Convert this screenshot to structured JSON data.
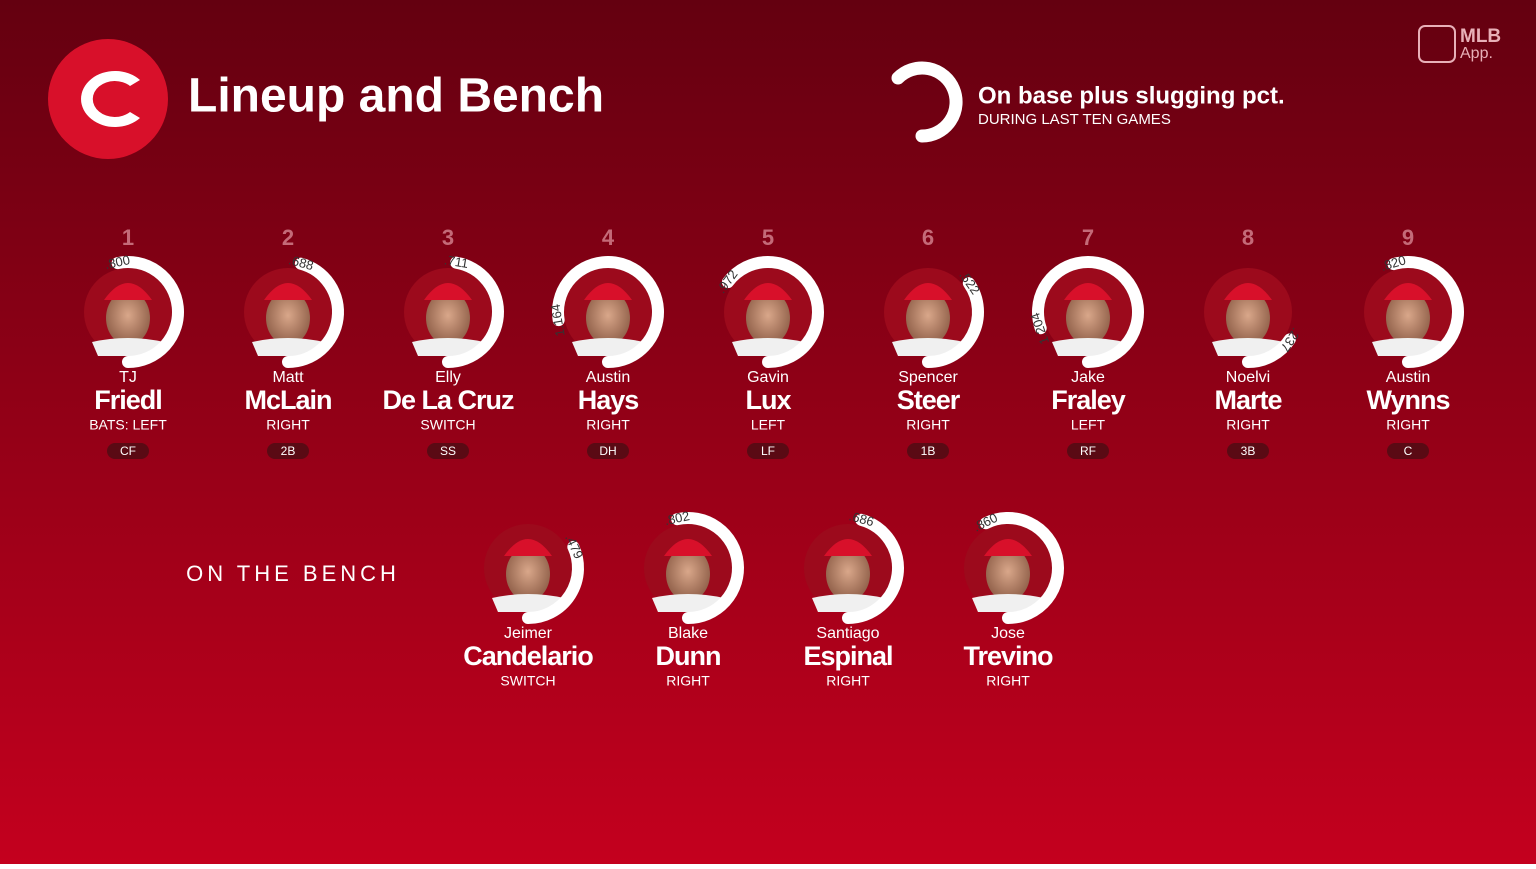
{
  "header": {
    "title": "Lineup and Bench",
    "brand": "MLB",
    "brand_sub": "App."
  },
  "legend": {
    "title": "On base plus slugging pct.",
    "subtitle": "DURING LAST TEN GAMES"
  },
  "lineup": [
    {
      "order": 1,
      "first": "TJ",
      "last": "Friedl",
      "bats": "BATS: LEFT",
      "position": "CF",
      "ops": {
        "value": 0.8,
        "label": ".800"
      }
    },
    {
      "order": 2,
      "first": "Matt",
      "last": "McLain",
      "bats": "RIGHT",
      "position": "2B",
      "ops": {
        "value": 0.688,
        "label": ".688"
      }
    },
    {
      "order": 3,
      "first": "Elly",
      "last": "De La Cruz",
      "bats": "SWITCH",
      "position": "SS",
      "ops": {
        "value": 0.711,
        "label": ".711"
      }
    },
    {
      "order": 4,
      "first": "Austin",
      "last": "Hays",
      "bats": "RIGHT",
      "position": "DH",
      "ops": {
        "value": 1.164,
        "label": "1.164"
      }
    },
    {
      "order": 5,
      "first": "Gavin",
      "last": "Lux",
      "bats": "LEFT",
      "position": "LF",
      "ops": {
        "value": 0.972,
        "label": ".972"
      }
    },
    {
      "order": 6,
      "first": "Spencer",
      "last": "Steer",
      "bats": "RIGHT",
      "position": "1B",
      "ops": {
        "value": 0.522,
        "label": ".522"
      }
    },
    {
      "order": 7,
      "first": "Jake",
      "last": "Fraley",
      "bats": "LEFT",
      "position": "RF",
      "ops": {
        "value": 1.204,
        "label": "1.204"
      }
    },
    {
      "order": 8,
      "first": "Noelvi",
      "last": "Marte",
      "bats": "RIGHT",
      "position": "3B",
      "ops": {
        "value": 0.237,
        "label": ".237"
      }
    },
    {
      "order": 9,
      "first": "Austin",
      "last": "Wynns",
      "bats": "RIGHT",
      "position": "C",
      "ops": {
        "value": 0.82,
        "label": ".820"
      }
    }
  ],
  "bench": {
    "title": "ON THE BENCH",
    "players": [
      {
        "first": "Jeimer",
        "last": "Candelario",
        "bats": "SWITCH",
        "ops": {
          "value": 0.479,
          "label": ".479"
        }
      },
      {
        "first": "Blake",
        "last": "Dunn",
        "bats": "RIGHT",
        "ops": {
          "value": 0.802,
          "label": ".802"
        }
      },
      {
        "first": "Santiago",
        "last": "Espinal",
        "bats": "RIGHT",
        "ops": {
          "value": 0.686,
          "label": ".686"
        }
      },
      {
        "first": "Jose",
        "last": "Trevino",
        "bats": "RIGHT",
        "ops": {
          "value": 0.86,
          "label": ".860"
        }
      }
    ]
  }
}
